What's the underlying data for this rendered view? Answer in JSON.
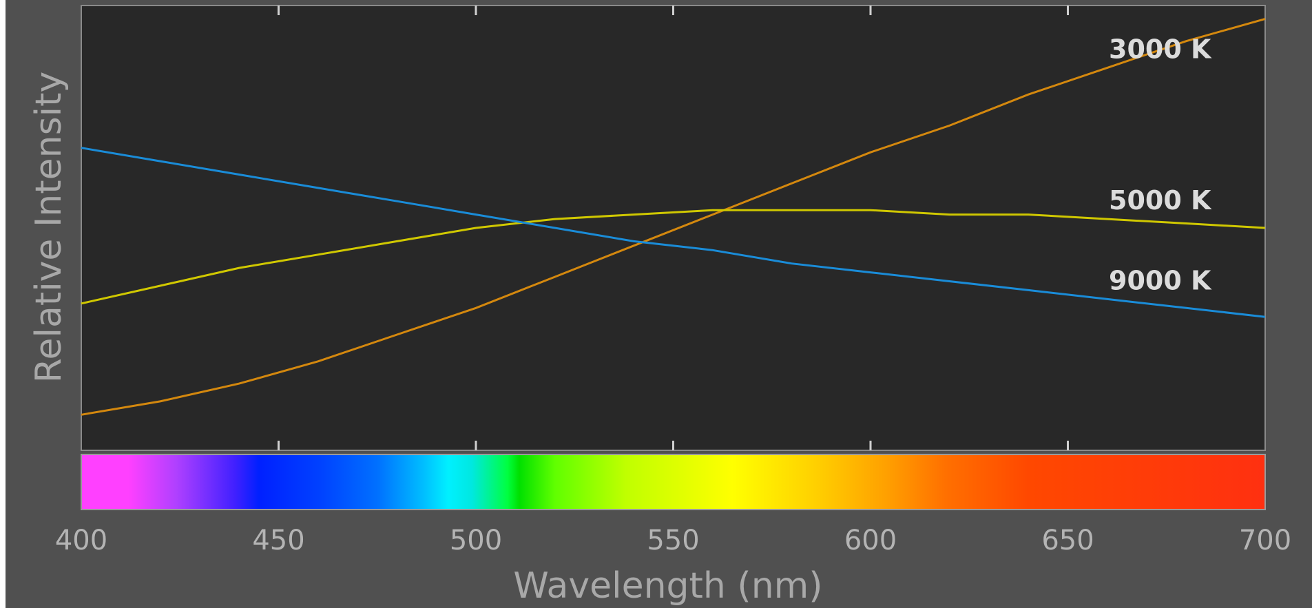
{
  "chart_data": {
    "type": "line",
    "xlabel": "Wavelength (nm)",
    "ylabel": "Relative Intensity",
    "xlim": [
      400,
      700
    ],
    "ylim": [
      0,
      1
    ],
    "x_ticks": [
      400,
      450,
      500,
      550,
      600,
      650,
      700
    ],
    "x_tick_labels": [
      "400",
      "450",
      "500",
      "550",
      "600",
      "650",
      "700"
    ],
    "grid": false,
    "legend": "inline labels at right end",
    "spectrum_bar": true,
    "series": [
      {
        "name": "3000 K",
        "color": "#d4880e",
        "x": [
          400,
          420,
          440,
          460,
          480,
          500,
          520,
          540,
          560,
          580,
          600,
          620,
          640,
          660,
          680,
          700
        ],
        "y": [
          0.08,
          0.11,
          0.15,
          0.2,
          0.26,
          0.32,
          0.39,
          0.46,
          0.53,
          0.6,
          0.67,
          0.73,
          0.8,
          0.86,
          0.92,
          0.97
        ]
      },
      {
        "name": "5000 K",
        "color": "#d0c800",
        "x": [
          400,
          420,
          440,
          460,
          480,
          500,
          520,
          540,
          560,
          580,
          600,
          620,
          640,
          660,
          680,
          700
        ],
        "y": [
          0.33,
          0.37,
          0.41,
          0.44,
          0.47,
          0.5,
          0.52,
          0.53,
          0.54,
          0.54,
          0.54,
          0.53,
          0.53,
          0.52,
          0.51,
          0.5
        ]
      },
      {
        "name": "9000 K",
        "color": "#1a8cd8",
        "x": [
          400,
          420,
          440,
          460,
          480,
          500,
          520,
          540,
          560,
          580,
          600,
          620,
          640,
          660,
          680,
          700
        ],
        "y": [
          0.68,
          0.65,
          0.62,
          0.59,
          0.56,
          0.53,
          0.5,
          0.47,
          0.45,
          0.42,
          0.4,
          0.38,
          0.36,
          0.34,
          0.32,
          0.3
        ]
      }
    ]
  }
}
